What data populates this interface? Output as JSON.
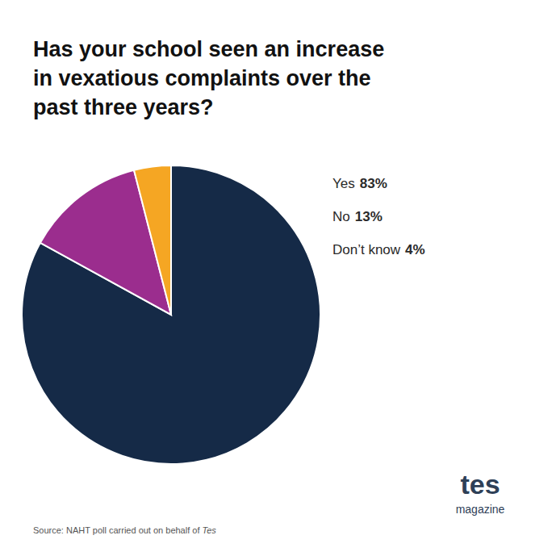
{
  "chart_data": {
    "type": "pie",
    "title": "Has your school seen an increase\nin vexatious complaints over the\npast three years?",
    "categories": [
      "Yes",
      "No",
      "Don’t know"
    ],
    "values": [
      83,
      13,
      4
    ],
    "value_labels": [
      "83%",
      "13%",
      "4%"
    ],
    "colors": [
      "#152A47",
      "#9B2D8E",
      "#F5A623"
    ],
    "data_labels": true,
    "annotations": [
      "Source: NAHT poll carried out on behalf of ",
      "Tes",
      "tes",
      "magazine"
    ]
  }
}
